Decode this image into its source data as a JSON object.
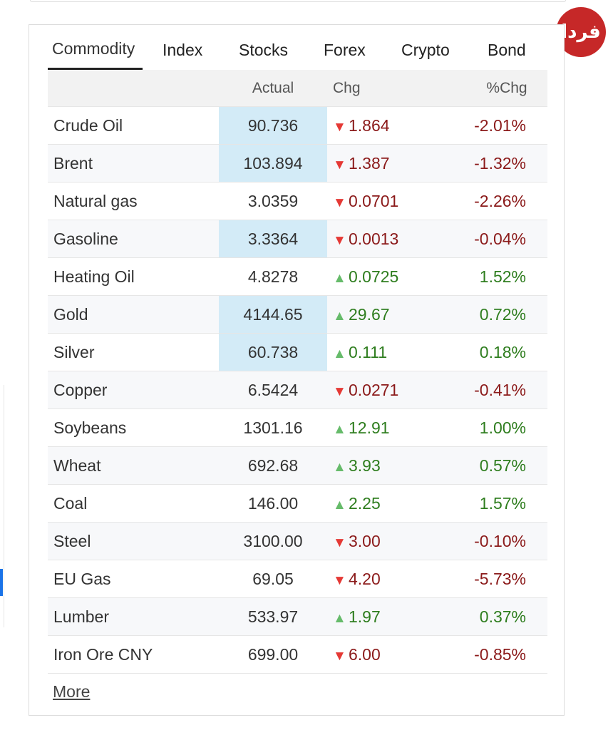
{
  "logo": {
    "text": "فردا"
  },
  "tabs": [
    {
      "label": "Commodity",
      "active": true
    },
    {
      "label": "Index"
    },
    {
      "label": "Stocks"
    },
    {
      "label": "Forex"
    },
    {
      "label": "Crypto"
    },
    {
      "label": "Bond"
    }
  ],
  "columns": {
    "name": "",
    "actual": "Actual",
    "chg": "Chg",
    "pct": "%Chg"
  },
  "colors": {
    "down_text": "#8b1a1a",
    "up_text": "#2e7d1e",
    "down_arrow": "#e53935",
    "up_arrow": "#66bb6a",
    "highlight": "#d3ebf7"
  },
  "rows": [
    {
      "name": "Crude Oil",
      "actual": "90.736",
      "chg": "1.864",
      "pct": "-2.01%",
      "direction": "down",
      "highlighted": true
    },
    {
      "name": "Brent",
      "actual": "103.894",
      "chg": "1.387",
      "pct": "-1.32%",
      "direction": "down",
      "highlighted": true
    },
    {
      "name": "Natural gas",
      "actual": "3.0359",
      "chg": "0.0701",
      "pct": "-2.26%",
      "direction": "down",
      "highlighted": false
    },
    {
      "name": "Gasoline",
      "actual": "3.3364",
      "chg": "0.0013",
      "pct": "-0.04%",
      "direction": "down",
      "highlighted": true
    },
    {
      "name": "Heating Oil",
      "actual": "4.8278",
      "chg": "0.0725",
      "pct": "1.52%",
      "direction": "up",
      "highlighted": false
    },
    {
      "name": "Gold",
      "actual": "4144.65",
      "chg": "29.67",
      "pct": "0.72%",
      "direction": "up",
      "highlighted": true
    },
    {
      "name": "Silver",
      "actual": "60.738",
      "chg": "0.111",
      "pct": "0.18%",
      "direction": "up",
      "highlighted": true
    },
    {
      "name": "Copper",
      "actual": "6.5424",
      "chg": "0.0271",
      "pct": "-0.41%",
      "direction": "down",
      "highlighted": false
    },
    {
      "name": "Soybeans",
      "actual": "1301.16",
      "chg": "12.91",
      "pct": "1.00%",
      "direction": "up",
      "highlighted": false
    },
    {
      "name": "Wheat",
      "actual": "692.68",
      "chg": "3.93",
      "pct": "0.57%",
      "direction": "up",
      "highlighted": false
    },
    {
      "name": "Coal",
      "actual": "146.00",
      "chg": "2.25",
      "pct": "1.57%",
      "direction": "up",
      "highlighted": false
    },
    {
      "name": "Steel",
      "actual": "3100.00",
      "chg": "3.00",
      "pct": "-0.10%",
      "direction": "down",
      "highlighted": false
    },
    {
      "name": "EU Gas",
      "actual": "69.05",
      "chg": "4.20",
      "pct": "-5.73%",
      "direction": "down",
      "highlighted": false
    },
    {
      "name": "Lumber",
      "actual": "533.97",
      "chg": "1.97",
      "pct": "0.37%",
      "direction": "up",
      "highlighted": false
    },
    {
      "name": "Iron Ore CNY",
      "actual": "699.00",
      "chg": "6.00",
      "pct": "-0.85%",
      "direction": "down",
      "highlighted": false
    }
  ],
  "footer": {
    "more_label": "More"
  }
}
